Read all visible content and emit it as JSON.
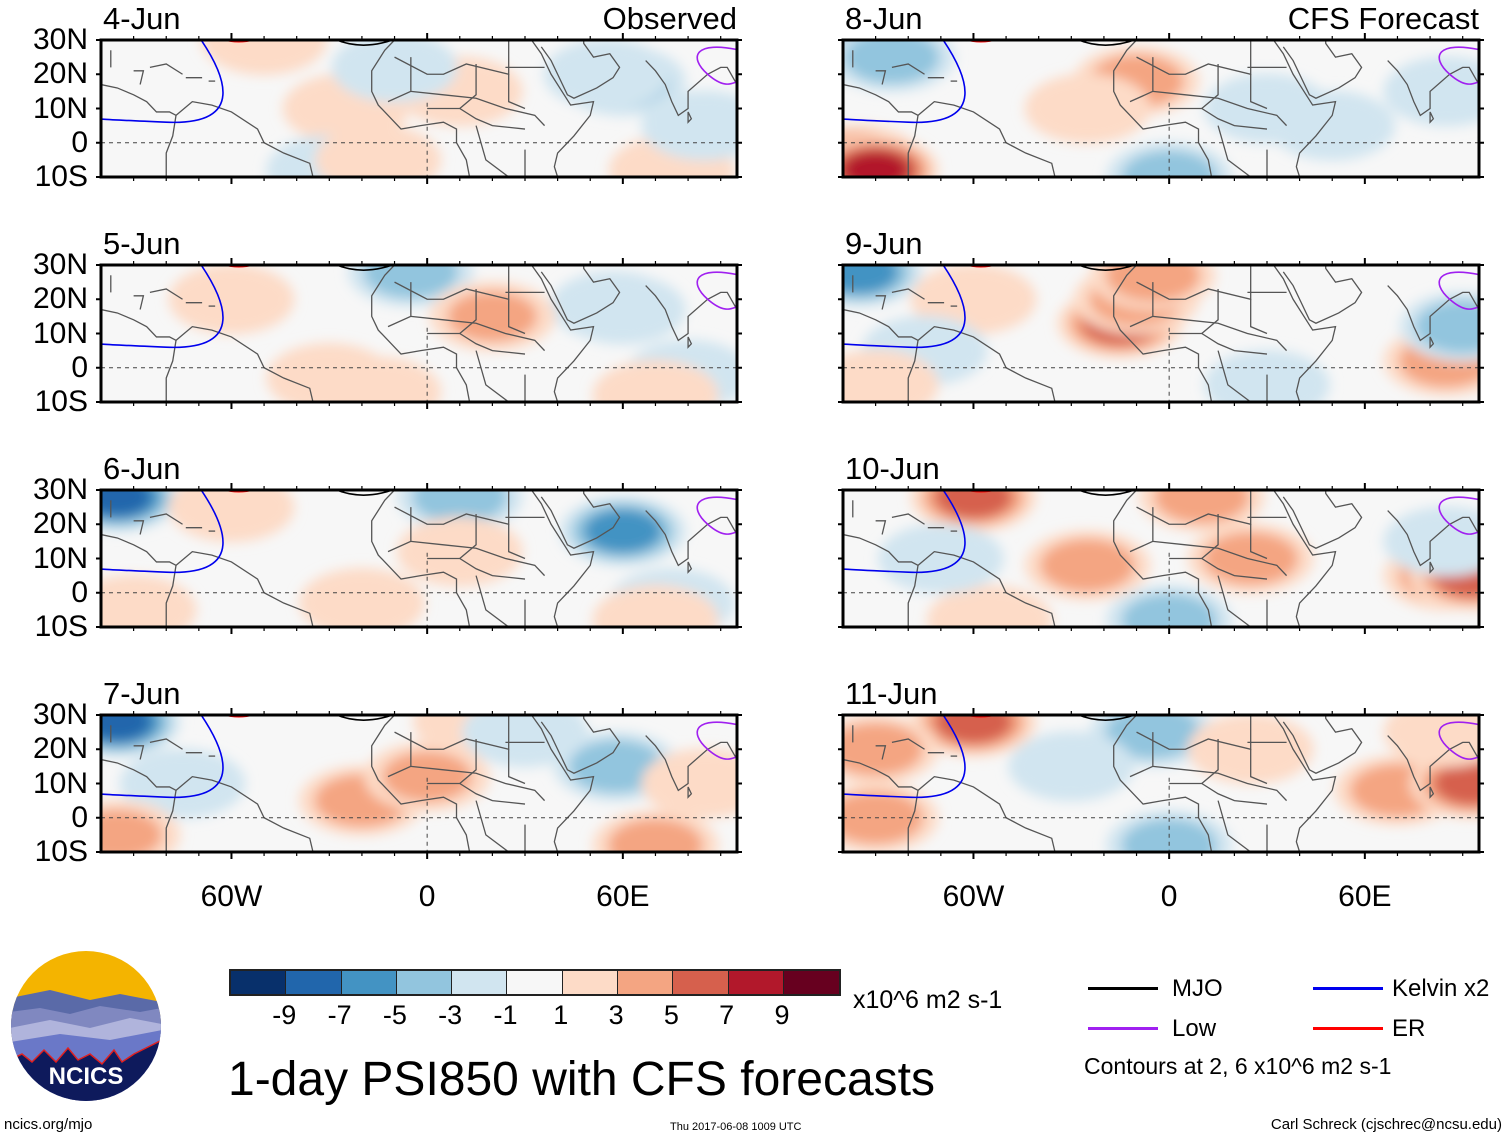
{
  "chart_data": {
    "type": "heatmap",
    "title": "1-day PSI850 with CFS forecasts",
    "xlabel": "",
    "ylabel": "",
    "x_ticks": [
      "60W",
      "0",
      "60E"
    ],
    "y_ticks": [
      "30N",
      "20N",
      "10N",
      "0",
      "10S"
    ],
    "xlim": [
      "~100W",
      "~95E"
    ],
    "ylim": [
      "10S",
      "30N"
    ],
    "colorbar": {
      "units": "x10^6 m2 s-1",
      "ticks": [
        "-9",
        "-7",
        "-5",
        "-3",
        "-1",
        "1",
        "3",
        "5",
        "7",
        "9"
      ],
      "colors": [
        "#08306b",
        "#2166ac",
        "#4393c3",
        "#92c5de",
        "#d1e5f0",
        "#f7f7f7",
        "#fddbc7",
        "#f4a582",
        "#d6604d",
        "#b2182b",
        "#67001f"
      ]
    },
    "contour_legend": [
      {
        "name": "MJO",
        "color": "#000000"
      },
      {
        "name": "Kelvin x2",
        "color": "#0000ee"
      },
      {
        "name": "Low",
        "color": "#a020f0"
      },
      {
        "name": "ER",
        "color": "#ff0000"
      }
    ],
    "contour_note": "Contours at 2, 6 x10^6 m2 s-1",
    "panels": [
      {
        "date": "4-Jun",
        "label": "Observed",
        "column": "left",
        "blobs": [
          [
            60,
            18,
            -5
          ],
          [
            55,
            20,
            -3
          ],
          [
            -50,
            30,
            2
          ],
          [
            -25,
            10,
            2
          ],
          [
            10,
            15,
            3
          ],
          [
            75,
            -8,
            3
          ],
          [
            -30,
            -8,
            -3
          ],
          [
            -10,
            22,
            -2
          ],
          [
            85,
            5,
            -2
          ],
          [
            -15,
            -5,
            2
          ]
        ]
      },
      {
        "date": "5-Jun",
        "label": "",
        "column": "left",
        "blobs": [
          [
            60,
            17,
            -7
          ],
          [
            57,
            18,
            -3
          ],
          [
            -5,
            28,
            -5
          ],
          [
            -15,
            -7,
            3
          ],
          [
            20,
            15,
            4
          ],
          [
            80,
            -2,
            -3
          ],
          [
            -60,
            20,
            2
          ],
          [
            70,
            -8,
            3
          ],
          [
            -30,
            -3,
            2
          ]
        ]
      },
      {
        "date": "6-Jun",
        "label": "",
        "column": "left",
        "blobs": [
          [
            60,
            18,
            -7
          ],
          [
            -95,
            28,
            -9
          ],
          [
            10,
            28,
            -5
          ],
          [
            -20,
            -3,
            2
          ],
          [
            10,
            12,
            3
          ],
          [
            75,
            -3,
            -3
          ],
          [
            -90,
            -5,
            3
          ],
          [
            70,
            -8,
            3
          ],
          [
            -60,
            25,
            2
          ]
        ]
      },
      {
        "date": "7-Jun",
        "label": "",
        "column": "left",
        "blobs": [
          [
            -95,
            28,
            -9
          ],
          [
            -20,
            5,
            5
          ],
          [
            0,
            12,
            4
          ],
          [
            15,
            28,
            3
          ],
          [
            58,
            15,
            -5
          ],
          [
            -75,
            10,
            -3
          ],
          [
            70,
            -8,
            5
          ],
          [
            -95,
            -5,
            4
          ],
          [
            85,
            10,
            3
          ],
          [
            30,
            25,
            -3
          ]
        ]
      },
      {
        "date": "8-Jun",
        "label": "CFS Forecast",
        "column": "right",
        "blobs": [
          [
            -95,
            28,
            -9
          ],
          [
            -85,
            25,
            -5
          ],
          [
            -10,
            18,
            5
          ],
          [
            -25,
            10,
            3
          ],
          [
            -95,
            -5,
            7
          ],
          [
            -90,
            -8,
            9
          ],
          [
            30,
            10,
            -3
          ],
          [
            50,
            5,
            -3
          ],
          [
            0,
            -10,
            -5
          ],
          [
            85,
            15,
            -3
          ]
        ]
      },
      {
        "date": "9-Jun",
        "label": "",
        "column": "right",
        "blobs": [
          [
            -95,
            28,
            -7
          ],
          [
            -15,
            13,
            7
          ],
          [
            -10,
            20,
            5
          ],
          [
            -5,
            27,
            5
          ],
          [
            85,
            2,
            5
          ],
          [
            -60,
            20,
            3
          ],
          [
            30,
            -5,
            -3
          ],
          [
            90,
            12,
            -5
          ],
          [
            -75,
            5,
            -3
          ],
          [
            -90,
            -5,
            3
          ]
        ]
      },
      {
        "date": "10-Jun",
        "label": "",
        "column": "right",
        "blobs": [
          [
            -60,
            28,
            7
          ],
          [
            -25,
            8,
            5
          ],
          [
            10,
            28,
            5
          ],
          [
            25,
            10,
            5
          ],
          [
            85,
            5,
            5
          ],
          [
            93,
            5,
            7
          ],
          [
            0,
            -8,
            -5
          ],
          [
            -55,
            -8,
            3
          ],
          [
            -70,
            10,
            -3
          ],
          [
            85,
            15,
            -3
          ]
        ]
      },
      {
        "date": "11-Jun",
        "label": "",
        "column": "right",
        "blobs": [
          [
            -60,
            28,
            7
          ],
          [
            -90,
            20,
            5
          ],
          [
            -90,
            0,
            5
          ],
          [
            -5,
            25,
            -5
          ],
          [
            -30,
            15,
            -3
          ],
          [
            0,
            -8,
            -5
          ],
          [
            70,
            8,
            5
          ],
          [
            93,
            10,
            7
          ],
          [
            25,
            20,
            3
          ],
          [
            85,
            25,
            3
          ]
        ]
      }
    ]
  },
  "footer": {
    "left": "ncics.org/mjo",
    "center": "Thu 2017-06-08 1009 UTC",
    "right": "Carl Schreck (cjschrec@ncsu.edu)"
  },
  "logo": {
    "text": "NCICS"
  }
}
